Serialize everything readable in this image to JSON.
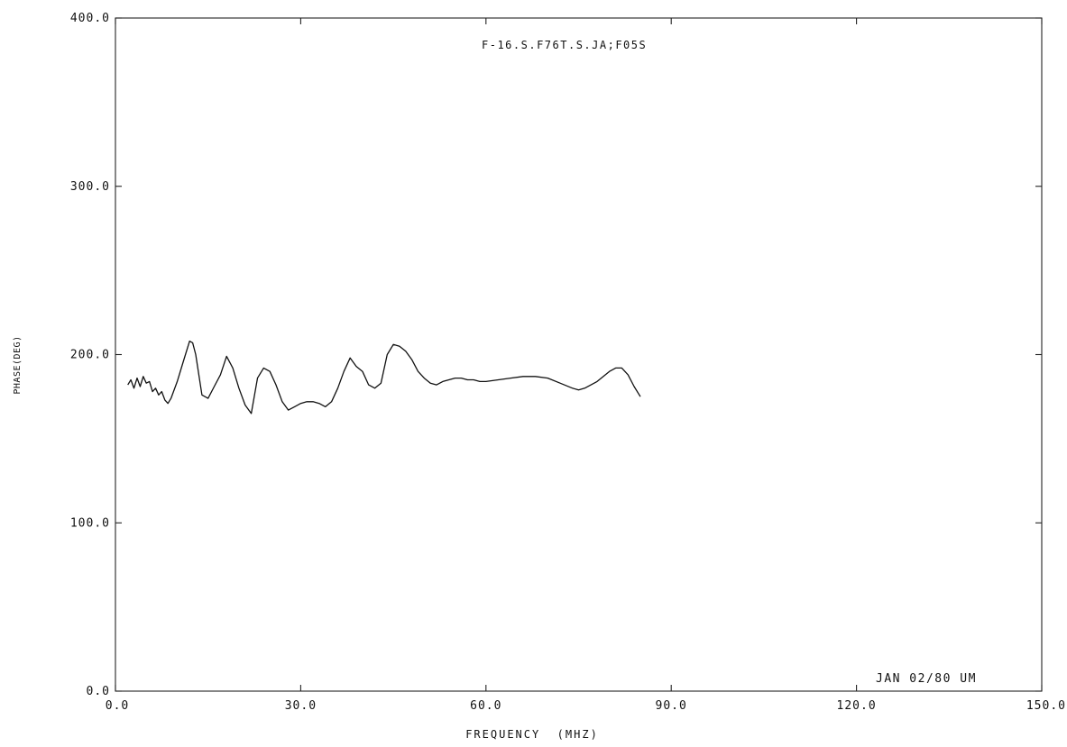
{
  "chart_data": {
    "type": "line",
    "title": "F-16.S.F76T.S.JA;F05S",
    "xlabel": "FREQUENCY  (MHZ)",
    "ylabel": "PHASE(DEG)",
    "annotation": "JAN 02/80 UM",
    "xlim": [
      0,
      150
    ],
    "ylim": [
      0,
      400
    ],
    "x_ticks": [
      "0.0",
      "30.0",
      "60.0",
      "90.0",
      "120.0",
      "150.0"
    ],
    "y_ticks": [
      "0.0",
      "100.0",
      "200.0",
      "300.0",
      "400.0"
    ],
    "grid": false,
    "line_color": "#111111",
    "series": [
      {
        "x": [
          2.0,
          2.5,
          3.0,
          3.5,
          4.0,
          4.5,
          5.0,
          5.5,
          6.0,
          6.5,
          7.0,
          7.5,
          8.0,
          8.5,
          9.0,
          10.0,
          11.0,
          12.0,
          12.5,
          13.0,
          14.0,
          15.0,
          16.0,
          17.0,
          18.0,
          19.0,
          20.0,
          21.0,
          22.0,
          23.0,
          24.0,
          25.0,
          26.0,
          27.0,
          28.0,
          29.0,
          30.0,
          31.0,
          32.0,
          33.0,
          34.0,
          35.0,
          36.0,
          37.0,
          38.0,
          39.0,
          40.0,
          41.0,
          42.0,
          43.0,
          44.0,
          45.0,
          46.0,
          47.0,
          48.0,
          49.0,
          50.0,
          51.0,
          52.0,
          53.0,
          54.0,
          55.0,
          56.0,
          57.0,
          58.0,
          59.0,
          60.0,
          62.0,
          64.0,
          66.0,
          68.0,
          70.0,
          72.0,
          74.0,
          75.0,
          76.0,
          78.0,
          80.0,
          81.0,
          82.0,
          83.0,
          84.0,
          85.0
        ],
        "y": [
          182,
          185,
          180,
          186,
          181,
          187,
          183,
          184,
          178,
          180,
          176,
          178,
          173,
          171,
          174,
          184,
          196,
          208,
          207,
          200,
          176,
          174,
          181,
          188,
          199,
          192,
          180,
          170,
          165,
          186,
          192,
          190,
          182,
          172,
          167,
          169,
          171,
          172,
          172,
          171,
          169,
          172,
          180,
          190,
          198,
          193,
          190,
          182,
          180,
          183,
          200,
          206,
          205,
          202,
          197,
          190,
          186,
          183,
          182,
          184,
          185,
          186,
          186,
          185,
          185,
          184,
          184,
          185,
          186,
          187,
          187,
          186,
          183,
          180,
          179,
          180,
          184,
          190,
          192,
          192,
          188,
          181,
          175
        ]
      }
    ]
  }
}
